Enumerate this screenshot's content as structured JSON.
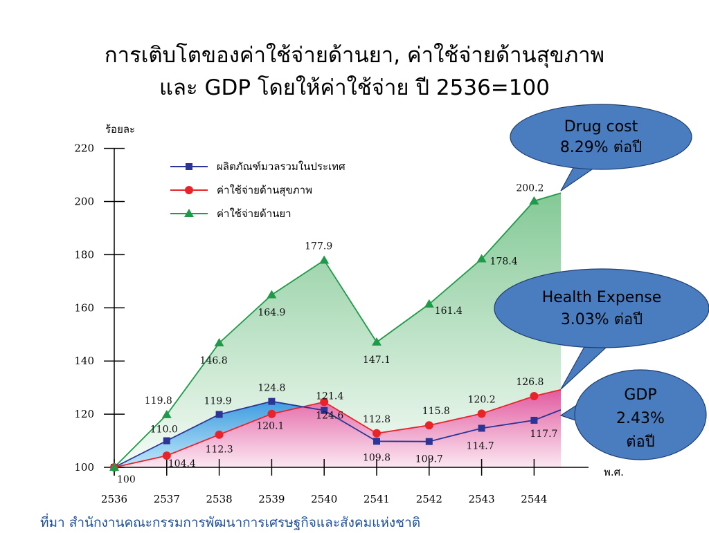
{
  "title_line1": "การเติบโตของค่าใช้จ่ายด้านยา, ค่าใช้จ่ายด้านสุขภาพ",
  "title_line2": "และ GDP โดยให้ค่าใช้จ่าย ปี 2536=100",
  "source": "ที่มา สำนักงานคณะกรรมการพัฒนาการเศรษฐกิจและสังคมแห่งชาติ",
  "colors": {
    "gdp": "#2a3596",
    "health": "#e8242b",
    "drug": "#1f9a48",
    "callout_fill": "#4a7cc0",
    "callout_stroke": "#1e3f70",
    "source_text": "#1f4e9a"
  },
  "chart_data": {
    "type": "line",
    "ylabel": "ร้อยละ",
    "xlabel": "พ.ศ.",
    "ylim": [
      100,
      220
    ],
    "yticks": [
      100,
      120,
      140,
      160,
      180,
      200,
      220
    ],
    "categories": [
      "2536",
      "2537",
      "2538",
      "2539",
      "2540",
      "2541",
      "2542",
      "2543",
      "2544"
    ],
    "grid": false,
    "legend_position": "top-left",
    "series": [
      {
        "key": "gdp",
        "name": "ผลิตภัณฑ์มวลรวมในประเทศ",
        "marker": "square",
        "values": [
          100,
          110.0,
          119.9,
          124.8,
          121.4,
          109.8,
          109.7,
          114.7,
          117.7
        ]
      },
      {
        "key": "health",
        "name": "ค่าใช้จ่ายด้านสุขภาพ",
        "marker": "circle",
        "values": [
          100,
          104.4,
          112.3,
          120.1,
          124.6,
          112.8,
          115.8,
          120.2,
          126.8
        ]
      },
      {
        "key": "drug",
        "name": "ค่าใช้จ่ายด้านยา",
        "marker": "triangle",
        "values": [
          100,
          119.8,
          146.8,
          164.9,
          177.9,
          147.1,
          161.4,
          178.4,
          200.2
        ]
      }
    ],
    "data_labels": [
      {
        "text": "100",
        "series": "all",
        "index": 0
      },
      {
        "text": "119.8",
        "series": "drug",
        "index": 1
      },
      {
        "text": "146.8",
        "series": "drug",
        "index": 2
      },
      {
        "text": "164.9",
        "series": "drug",
        "index": 3
      },
      {
        "text": "177.9",
        "series": "drug",
        "index": 4
      },
      {
        "text": "147.1",
        "series": "drug",
        "index": 5
      },
      {
        "text": "161.4",
        "series": "drug",
        "index": 6
      },
      {
        "text": "178.4",
        "series": "drug",
        "index": 7
      },
      {
        "text": "200.2",
        "series": "drug",
        "index": 8
      },
      {
        "text": "110.0",
        "series": "gdp",
        "index": 1
      },
      {
        "text": "119.9",
        "series": "gdp",
        "index": 2
      },
      {
        "text": "124.8",
        "series": "gdp",
        "index": 3
      },
      {
        "text": "121.4",
        "series": "gdp",
        "index": 4
      },
      {
        "text": "109.8",
        "series": "gdp",
        "index": 5
      },
      {
        "text": "109.7",
        "series": "gdp",
        "index": 6
      },
      {
        "text": "114.7",
        "series": "gdp",
        "index": 7
      },
      {
        "text": "117.7",
        "series": "gdp",
        "index": 8
      },
      {
        "text": "104.4",
        "series": "health",
        "index": 1
      },
      {
        "text": "112.3",
        "series": "health",
        "index": 2
      },
      {
        "text": "120.1",
        "series": "health",
        "index": 3
      },
      {
        "text": "124.6",
        "series": "health",
        "index": 4
      },
      {
        "text": "112.8",
        "series": "health",
        "index": 5
      },
      {
        "text": "115.8",
        "series": "health",
        "index": 6
      },
      {
        "text": "120.2",
        "series": "health",
        "index": 7
      },
      {
        "text": "126.8",
        "series": "health",
        "index": 8
      }
    ],
    "callouts": [
      {
        "key": "drug",
        "lines": [
          "Drug cost",
          "8.29% ต่อปี"
        ]
      },
      {
        "key": "health",
        "lines": [
          "Health Expense",
          "3.03% ต่อปี"
        ]
      },
      {
        "key": "gdp",
        "lines": [
          "GDP",
          "2.43%",
          "ต่อปี"
        ]
      }
    ]
  }
}
